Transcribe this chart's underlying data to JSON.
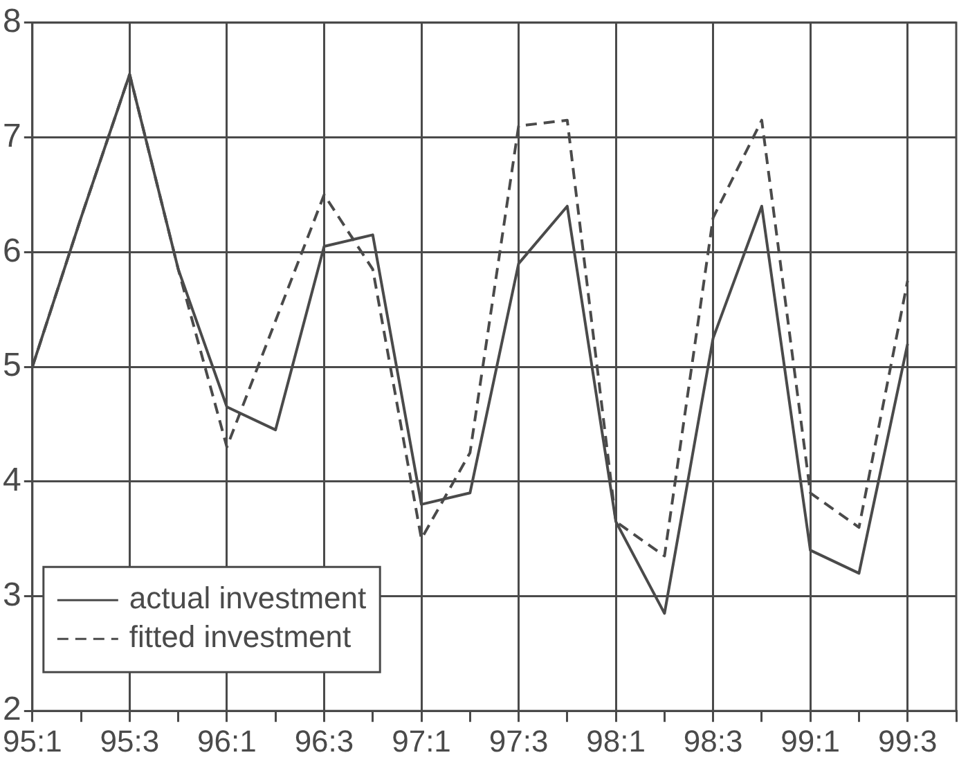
{
  "chart_data": {
    "type": "line",
    "categories": [
      "95:1",
      null,
      "95:3",
      null,
      "96:1",
      null,
      "96:3",
      null,
      "97:1",
      null,
      "97:3",
      null,
      "98:1",
      null,
      "98:3",
      null,
      "99:1",
      null,
      "99:3",
      null
    ],
    "series": [
      {
        "name": "actual investment",
        "color": "#4a4a4a",
        "line_style": "solid",
        "values": [
          5.0,
          6.3,
          7.55,
          5.85,
          4.65,
          4.45,
          6.05,
          6.15,
          3.8,
          3.9,
          5.9,
          6.4,
          3.65,
          2.85,
          5.25,
          6.4,
          3.4,
          3.2,
          5.2,
          null
        ]
      },
      {
        "name": "fitted investment",
        "color": "#4a4a4a",
        "line_style": "dashed",
        "values": [
          5.0,
          6.3,
          7.55,
          5.85,
          4.3,
          5.4,
          6.5,
          5.85,
          3.5,
          4.25,
          7.1,
          7.15,
          3.65,
          3.35,
          6.3,
          7.15,
          3.9,
          3.6,
          5.75,
          null
        ]
      }
    ],
    "ylim": [
      2,
      8
    ],
    "yticks": [
      2,
      3,
      4,
      5,
      6,
      7,
      8
    ],
    "grid": true,
    "legend": "bottom left",
    "marker": "none"
  }
}
